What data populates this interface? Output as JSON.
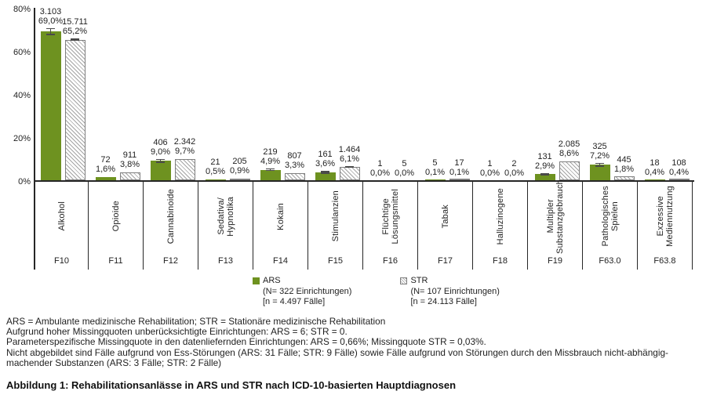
{
  "chart_data": {
    "type": "bar",
    "title": "",
    "xlabel": "",
    "ylabel": "",
    "ylim": [
      0,
      80
    ],
    "y_ticks": [
      {
        "label": "0%",
        "value": 0
      },
      {
        "label": "20%",
        "value": 20
      },
      {
        "label": "40%",
        "value": 40
      },
      {
        "label": "60%",
        "value": 60
      },
      {
        "label": "80%",
        "value": 80
      }
    ],
    "grid": "off",
    "legend_position": "bottom-center",
    "categories": [
      {
        "label_lines": [
          "Alkohol"
        ],
        "code": "F10"
      },
      {
        "label_lines": [
          "Opioide"
        ],
        "code": "F11"
      },
      {
        "label_lines": [
          "Cannabinoide"
        ],
        "code": "F12"
      },
      {
        "label_lines": [
          "Sedativa/",
          "Hypnotika"
        ],
        "code": "F13"
      },
      {
        "label_lines": [
          "Kokain"
        ],
        "code": "F14"
      },
      {
        "label_lines": [
          "Stimulanzien"
        ],
        "code": "F15"
      },
      {
        "label_lines": [
          "Flüchtige",
          "Lösungsmittel"
        ],
        "code": "F16"
      },
      {
        "label_lines": [
          "Tabak"
        ],
        "code": "F17"
      },
      {
        "label_lines": [
          "Halluzinogene"
        ],
        "code": "F18"
      },
      {
        "label_lines": [
          "Multipler",
          "Substanzgebrauch"
        ],
        "code": "F19"
      },
      {
        "label_lines": [
          "Pathologisches",
          "Spielen"
        ],
        "code": "F63.0"
      },
      {
        "label_lines": [
          "Exzessive",
          "Mediennutzung"
        ],
        "code": "F63.8"
      }
    ],
    "series": [
      {
        "name": "ARS",
        "style": "solid",
        "color": "#6e9220",
        "values": [
          69.0,
          1.6,
          9.0,
          0.5,
          4.9,
          3.6,
          0.0,
          0.1,
          0.0,
          2.9,
          7.2,
          0.4
        ],
        "pct_labels": [
          "69,0%",
          "1,6%",
          "9,0%",
          "0,5%",
          "4,9%",
          "3,6%",
          "0,0%",
          "0,1%",
          "0,0%",
          "2,9%",
          "7,2%",
          "0,4%"
        ],
        "counts": [
          "3.103",
          "72",
          "406",
          "21",
          "219",
          "161",
          "1",
          "5",
          "1",
          "131",
          "325",
          "18"
        ],
        "errors": [
          1.6,
          0.4,
          0.9,
          0.15,
          0.7,
          0.6,
          0.05,
          0.1,
          0.05,
          0.55,
          0.85,
          0.15
        ]
      },
      {
        "name": "STR",
        "style": "diagonal-hatch",
        "color": "#a3a3a3",
        "values": [
          65.2,
          3.8,
          9.7,
          0.9,
          3.3,
          6.1,
          0.0,
          0.1,
          0.0,
          8.6,
          1.8,
          0.4
        ],
        "pct_labels": [
          "65,2%",
          "3,8%",
          "9,7%",
          "0,9%",
          "3,3%",
          "6,1%",
          "0,0%",
          "0,1%",
          "0,0%",
          "8,6%",
          "1,8%",
          "0,4%"
        ],
        "counts": [
          "15.711",
          "911",
          "2.342",
          "205",
          "807",
          "1.464",
          "5",
          "17",
          "2",
          "2.085",
          "445",
          "108"
        ],
        "errors": [
          0.5,
          0.3,
          0.35,
          0.2,
          0.3,
          0.45,
          0.05,
          0.05,
          0.05,
          0.4,
          0.2,
          0.1
        ]
      }
    ],
    "legend": [
      {
        "name": "ARS",
        "line2": "(N= 322 Einrichtungen)",
        "line3": "[n = 4.497 Fälle]"
      },
      {
        "name": "STR",
        "line2": "(N= 107 Einrichtungen)",
        "line3": "[n = 24.113 Fälle]"
      }
    ]
  },
  "footnotes": [
    "ARS = Ambulante medizinische Rehabilitation; STR = Stationäre medizinische Rehabilitation",
    "Aufgrund hoher Missingquoten unberücksichtigte Einrichtungen: ARS = 6; STR = 0.",
    "Parameterspezifische Missingquote in den datenliefernden Einrichtungen: ARS = 0,66%; Missingquote STR = 0,03%.",
    "Nicht abgebildet sind Fälle aufgrund von Ess-Störungen (ARS: 31 Fälle; STR: 9 Fälle) sowie Fälle aufgrund von Störungen durch den Missbrauch nicht-abhängig-machender Substanzen (ARS: 3 Fälle; STR: 2 Fälle)"
  ],
  "caption": "Abbildung 1: Rehabilitationsanlässe in ARS und STR nach ICD-10-basierten Hauptdiagnosen"
}
